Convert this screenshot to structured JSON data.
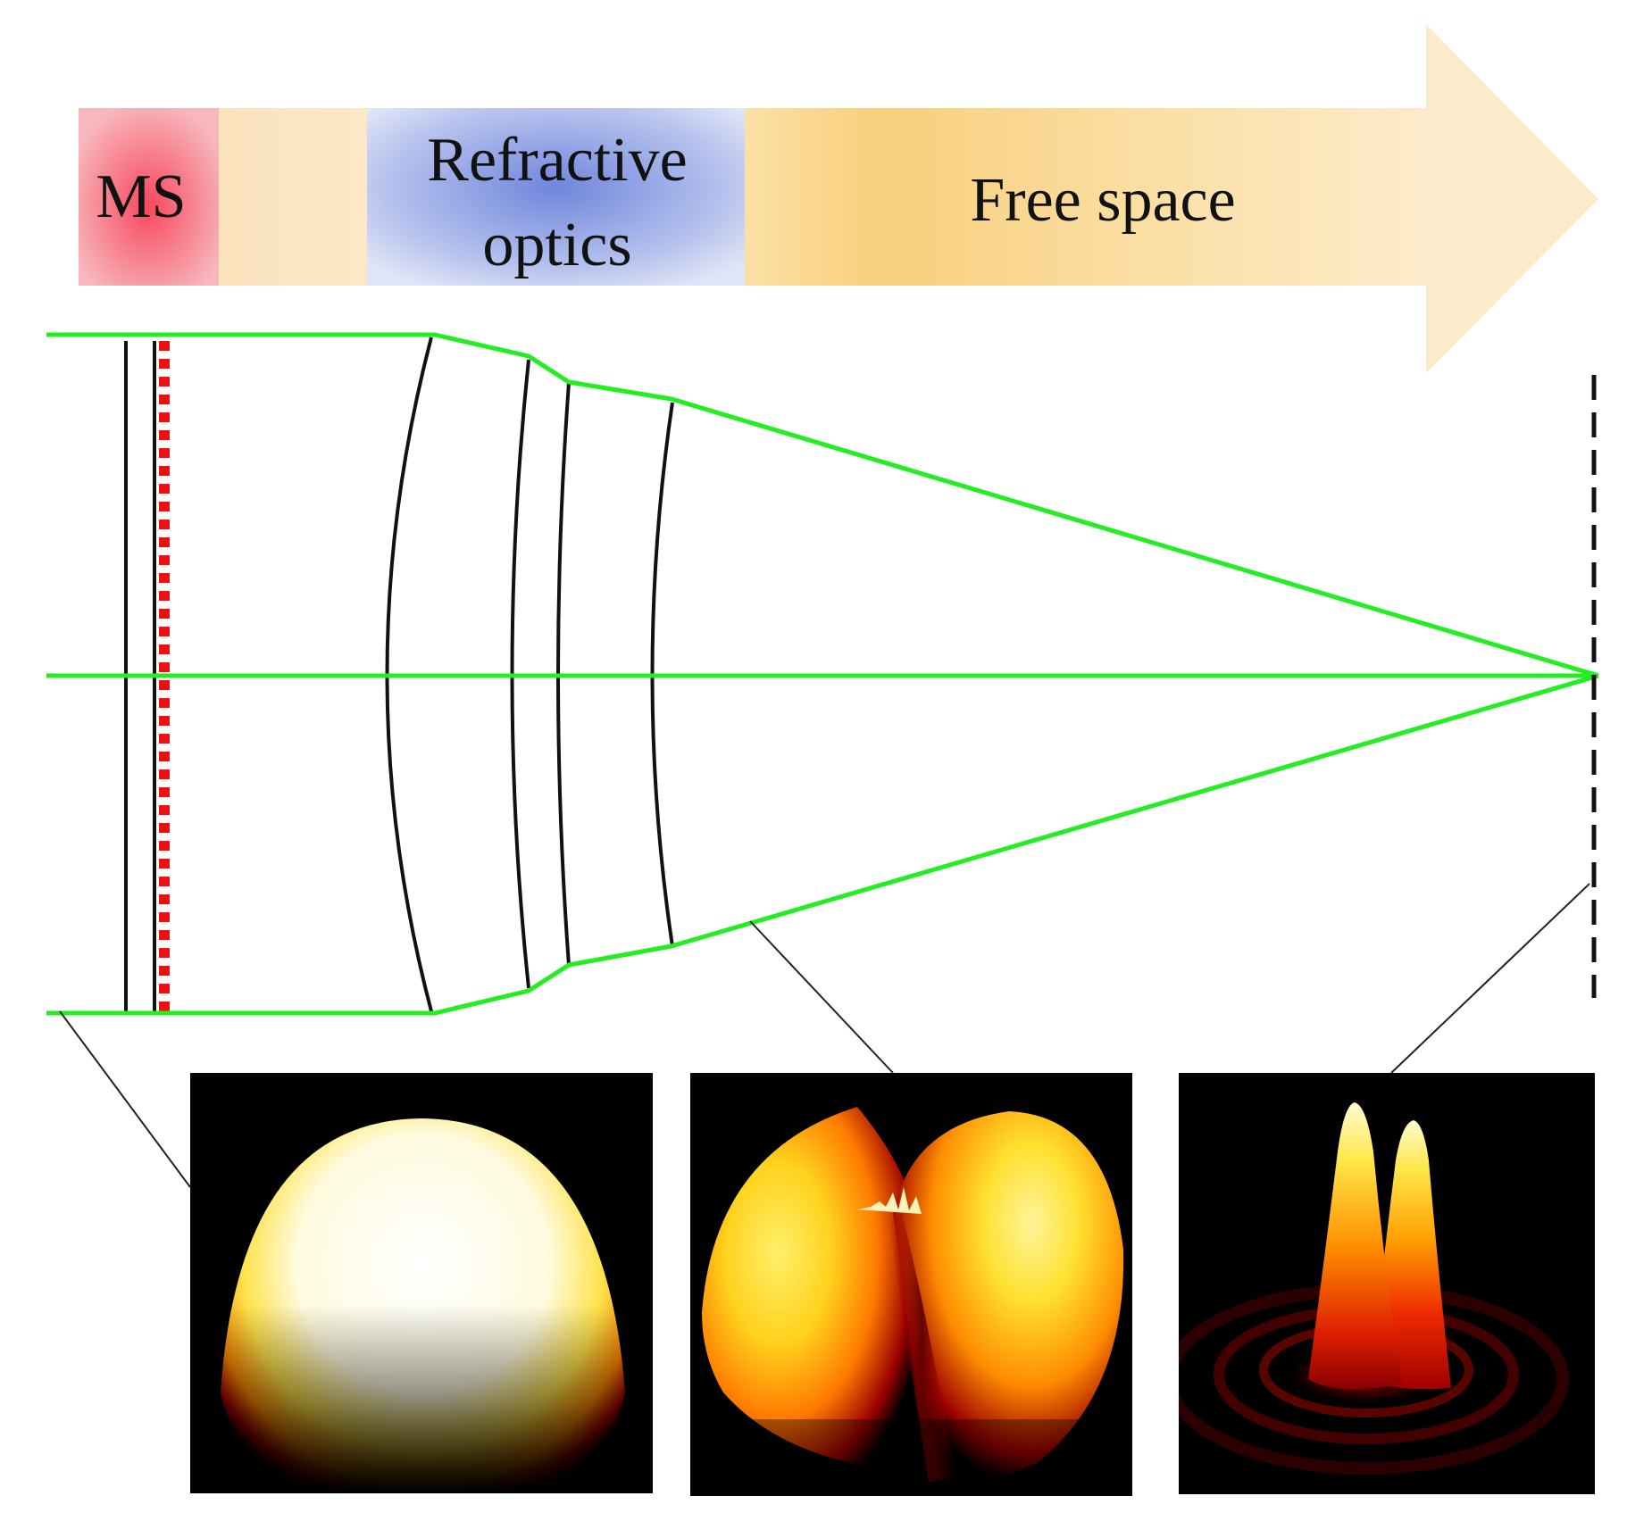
{
  "banner": {
    "segments": [
      {
        "id": "ms",
        "label_lines": [
          "MS"
        ],
        "color": "#f26d7d"
      },
      {
        "id": "gap",
        "label_lines": [],
        "color": "#fbe3bd"
      },
      {
        "id": "refractive",
        "label_lines": [
          "Refractive",
          "optics"
        ],
        "color": "#7f95de"
      },
      {
        "id": "free-space",
        "label_lines": [
          "Free space"
        ],
        "color": "#f9cf78"
      }
    ]
  },
  "colors": {
    "ray": "#22ee22",
    "lens": "#111111",
    "metasurface": "#ee1111",
    "arrow": "#fbe3bd",
    "panel_background": "#000000"
  },
  "panels": [
    {
      "id": "input-field",
      "depiction": "uniform dome profile"
    },
    {
      "id": "intermediate-field",
      "depiction": "split lobes with phase singularity"
    },
    {
      "id": "focal-field",
      "depiction": "two sharp peaks with rings"
    }
  ]
}
